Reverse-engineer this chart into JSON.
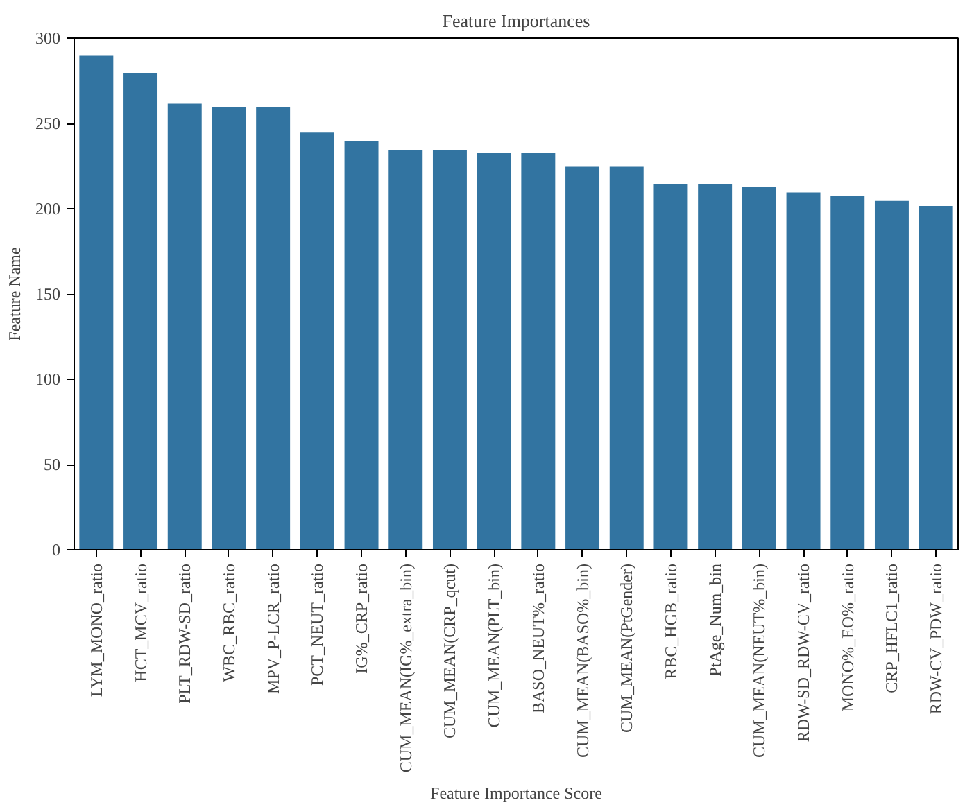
{
  "chart_data": {
    "type": "bar",
    "title": "Feature Importances",
    "xlabel": "Feature Importance Score",
    "ylabel": "Feature Name",
    "categories": [
      "LYM_MONO_ratio",
      "HCT_MCV_ratio",
      "PLT_RDW-SD_ratio",
      "WBC_RBC_ratio",
      "MPV_P-LCR_ratio",
      "PCT_NEUT_ratio",
      "IG%_CRP_ratio",
      "CUM_MEAN(IG%_extra_bin)",
      "CUM_MEAN(CRP_qcut)",
      "CUM_MEAN(PLT_bin)",
      "BASO_NEUT%_ratio",
      "CUM_MEAN(BASO%_bin)",
      "CUM_MEAN(PtGender)",
      "RBC_HGB_ratio",
      "PtAge_Num_bin",
      "CUM_MEAN(NEUT%_bin)",
      "RDW-SD_RDW-CV_ratio",
      "MONO%_EO%_ratio",
      "CRP_HFLC1_ratio",
      "RDW-CV_PDW_ratio"
    ],
    "values": [
      290,
      280,
      262,
      260,
      260,
      245,
      240,
      235,
      235,
      233,
      233,
      225,
      225,
      215,
      215,
      213,
      210,
      208,
      205,
      202
    ],
    "color": "#3274a1",
    "ylim": [
      0,
      300
    ],
    "yticks": [
      0,
      50,
      100,
      150,
      200,
      250,
      300
    ],
    "grid": false
  }
}
